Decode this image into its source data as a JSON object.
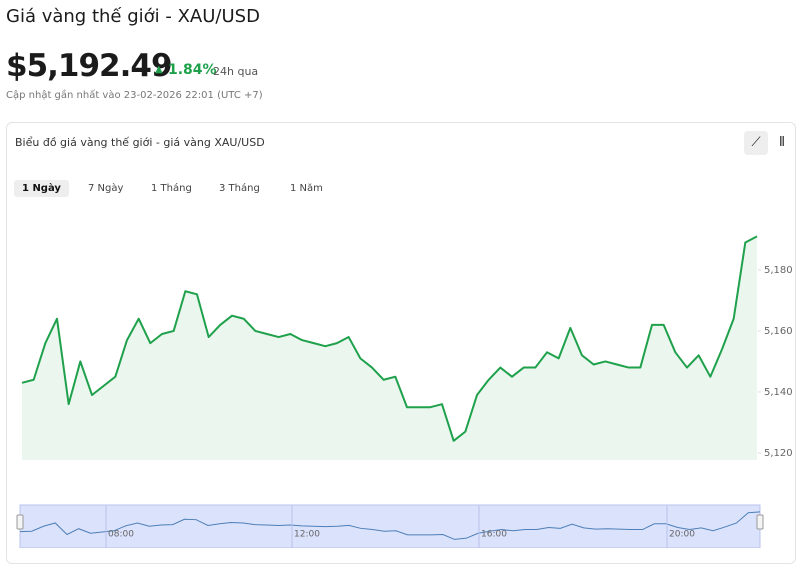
{
  "header": {
    "title": "Giá vàng thế giới - XAU/USD",
    "price": "$5,192.49",
    "change": "1.84%",
    "period": "24h qua",
    "updated": "Cập nhật gần nhất vào 23-02-2026 22:01 (UTC +7)"
  },
  "panel": {
    "title": "Biểu đồ giá vàng thế giới - giá vàng XAU/USD",
    "tabs": [
      "1 Ngày",
      "7 Ngày",
      "1 Tháng",
      "3 Tháng",
      "1 Năm"
    ]
  },
  "chart_data": {
    "type": "area",
    "color": "#1fa14c",
    "fill": "#eaf6ee",
    "values": [
      5143,
      5144,
      5156,
      5164,
      5136,
      5150,
      5139,
      5142,
      5145,
      5157,
      5164,
      5156,
      5159,
      5160,
      5173,
      5172,
      5158,
      5162,
      5165,
      5164,
      5160,
      5159,
      5158,
      5159,
      5157,
      5156,
      5155,
      5156,
      5158,
      5151,
      5148,
      5144,
      5145,
      5135,
      5135,
      5135,
      5136,
      5124,
      5127,
      5139,
      5144,
      5148,
      5145,
      5148,
      5148,
      5153,
      5151,
      5161,
      5152,
      5149,
      5150,
      5149,
      5148,
      5148,
      5162,
      5162,
      5153,
      5148,
      5152,
      5145,
      5154,
      5164,
      5189,
      5191
    ],
    "ylim": [
      5117.7,
      5198
    ],
    "yticks": [
      {
        "value": 5120,
        "label": "5,120"
      },
      {
        "value": 5140,
        "label": "5,140"
      },
      {
        "value": 5160,
        "label": "5,160"
      },
      {
        "value": 5180,
        "label": "5,180"
      }
    ],
    "grid": false,
    "navigator": {
      "labels": [
        "08:00",
        "12:00",
        "16:00",
        "20:00"
      ]
    }
  }
}
